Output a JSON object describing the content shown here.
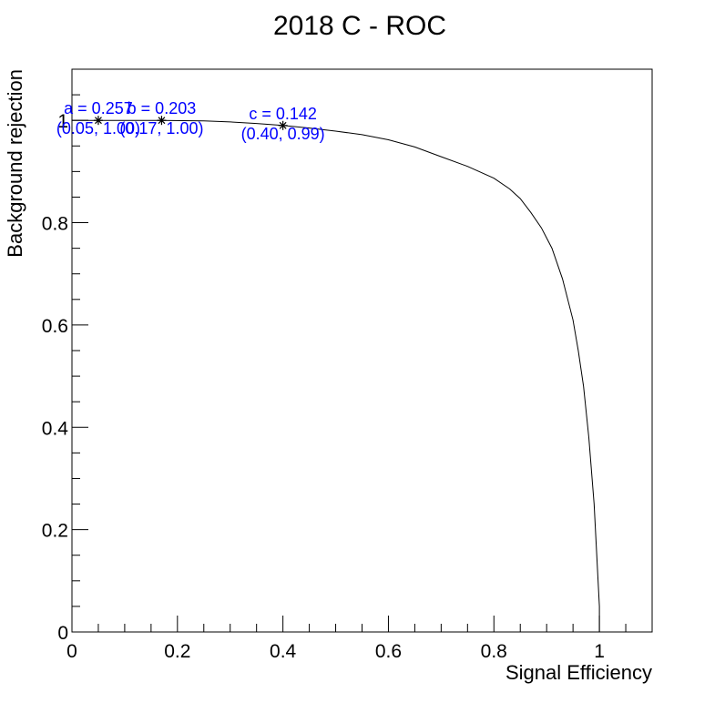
{
  "chart_data": {
    "type": "line",
    "title": "2018 C - ROC",
    "xlabel": "Signal Efficiency",
    "ylabel": "Background rejection",
    "xlim": [
      0,
      1.1
    ],
    "ylim": [
      0,
      1.1
    ],
    "x_ticks": [
      0,
      0.2,
      0.4,
      0.6,
      0.8,
      1
    ],
    "x_tick_labels": [
      "0",
      "0.2",
      "0.4",
      "0.6",
      "0.8",
      "1"
    ],
    "y_ticks": [
      0,
      0.2,
      0.4,
      0.6,
      0.8,
      1
    ],
    "y_tick_labels": [
      "0",
      "0.2",
      "0.4",
      "0.6",
      "0.8",
      "1"
    ],
    "grid": false,
    "series": [
      {
        "color": "#000000",
        "x": [
          0.0,
          0.05,
          0.1,
          0.17,
          0.25,
          0.3,
          0.35,
          0.4,
          0.45,
          0.5,
          0.55,
          0.6,
          0.65,
          0.7,
          0.75,
          0.8,
          0.83,
          0.85,
          0.87,
          0.89,
          0.91,
          0.93,
          0.95,
          0.96,
          0.97,
          0.98,
          0.99,
          0.995,
          1.0,
          1.0
        ],
        "y": [
          1.0,
          1.0,
          1.0,
          1.0,
          0.999,
          0.997,
          0.994,
          0.99,
          0.985,
          0.979,
          0.972,
          0.962,
          0.948,
          0.929,
          0.91,
          0.887,
          0.866,
          0.847,
          0.82,
          0.79,
          0.75,
          0.69,
          0.61,
          0.55,
          0.48,
          0.38,
          0.25,
          0.15,
          0.05,
          0.0
        ]
      }
    ],
    "annotations": [
      {
        "label": "a = 0.257",
        "coords": "(0.05, 1.00)",
        "x": 0.05,
        "y": 1.0,
        "color": "#0000ff"
      },
      {
        "label": "b = 0.203",
        "coords": "(0.17, 1.00)",
        "x": 0.17,
        "y": 1.0,
        "color": "#0000ff"
      },
      {
        "label": "c = 0.142",
        "coords": "(0.40, 0.99)",
        "x": 0.4,
        "y": 0.99,
        "color": "#0000ff"
      }
    ]
  }
}
